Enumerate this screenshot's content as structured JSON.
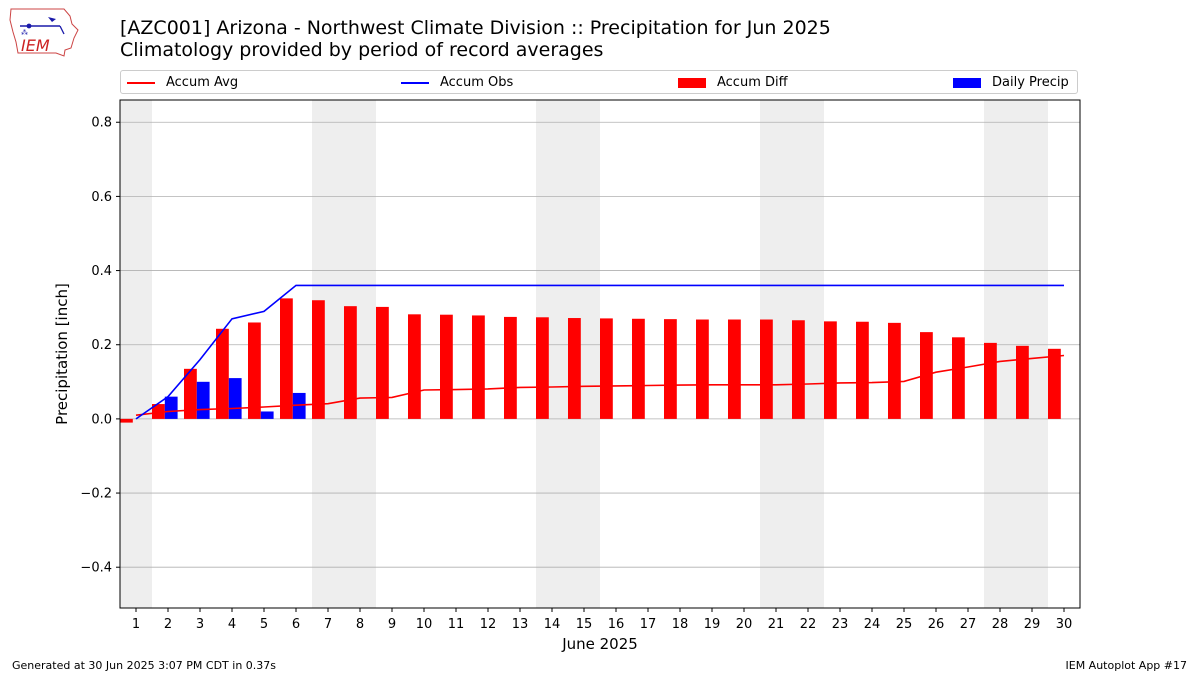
{
  "header": {
    "title_line1": "[AZC001] Arizona - Northwest Climate Division :: Precipitation for Jun 2025",
    "title_line2": "Climatology provided by period of record averages"
  },
  "logo": {
    "text": "IEM",
    "icon": "iowa-state-outline-weather-icon"
  },
  "footer": {
    "generated": "Generated at 30 Jun 2025 3:07 PM CDT in 0.37s",
    "app": "IEM Autoplot App #17"
  },
  "colors": {
    "avg": "#ff0000",
    "obs": "#0000ff",
    "diff": "#ff0000",
    "daily": "#0000ff",
    "weekend_band": "#eeeeee",
    "grid": "#b0b0b0"
  },
  "chart_data": {
    "type": "bar",
    "xlabel": "June 2025",
    "ylabel": "Precipitation [inch]",
    "ylim": [
      -0.51,
      0.86
    ],
    "yticks": [
      -0.4,
      -0.2,
      0.0,
      0.2,
      0.4,
      0.6,
      0.8
    ],
    "ytick_labels": [
      "−0.4",
      "−0.2",
      "0.0",
      "0.2",
      "0.4",
      "0.6",
      "0.8"
    ],
    "grid": "horizontal",
    "legend_position": "top",
    "categories": [
      "1",
      "2",
      "3",
      "4",
      "5",
      "6",
      "7",
      "8",
      "9",
      "10",
      "11",
      "12",
      "13",
      "14",
      "15",
      "16",
      "17",
      "18",
      "19",
      "20",
      "21",
      "22",
      "23",
      "24",
      "25",
      "26",
      "27",
      "28",
      "29",
      "30"
    ],
    "weekend_days": [
      1,
      7,
      8,
      14,
      15,
      21,
      22,
      28,
      29
    ],
    "legend": [
      "Accum Avg",
      "Accum Obs",
      "Accum Diff",
      "Daily Precip"
    ],
    "series": [
      {
        "name": "Accum Avg",
        "kind": "line",
        "values": [
          0.01,
          0.02,
          0.025,
          0.028,
          0.032,
          0.037,
          0.041,
          0.056,
          0.058,
          0.078,
          0.079,
          0.081,
          0.085,
          0.086,
          0.088,
          0.089,
          0.09,
          0.091,
          0.092,
          0.092,
          0.092,
          0.094,
          0.097,
          0.098,
          0.101,
          0.126,
          0.14,
          0.155,
          0.163,
          0.171
        ]
      },
      {
        "name": "Accum Obs",
        "kind": "line",
        "values": [
          0.0,
          0.06,
          0.16,
          0.27,
          0.29,
          0.36,
          0.36,
          0.36,
          0.36,
          0.36,
          0.36,
          0.36,
          0.36,
          0.36,
          0.36,
          0.36,
          0.36,
          0.36,
          0.36,
          0.36,
          0.36,
          0.36,
          0.36,
          0.36,
          0.36,
          0.36,
          0.36,
          0.36,
          0.36,
          0.36
        ]
      },
      {
        "name": "Accum Diff",
        "kind": "bar",
        "values": [
          -0.01,
          0.04,
          0.135,
          0.243,
          0.26,
          0.325,
          0.32,
          0.304,
          0.302,
          0.282,
          0.281,
          0.279,
          0.275,
          0.274,
          0.272,
          0.271,
          0.27,
          0.269,
          0.268,
          0.268,
          0.268,
          0.266,
          0.263,
          0.262,
          0.259,
          0.234,
          0.22,
          0.205,
          0.197,
          0.189
        ]
      },
      {
        "name": "Daily Precip",
        "kind": "bar",
        "values": [
          0.0,
          0.06,
          0.1,
          0.11,
          0.02,
          0.07,
          0.0,
          0.0,
          0.0,
          0.0,
          0.0,
          0.0,
          0.0,
          0.0,
          0.0,
          0.0,
          0.0,
          0.0,
          0.0,
          0.0,
          0.0,
          0.0,
          0.0,
          0.0,
          0.0,
          0.0,
          0.0,
          0.0,
          0.0,
          0.0
        ]
      }
    ]
  }
}
